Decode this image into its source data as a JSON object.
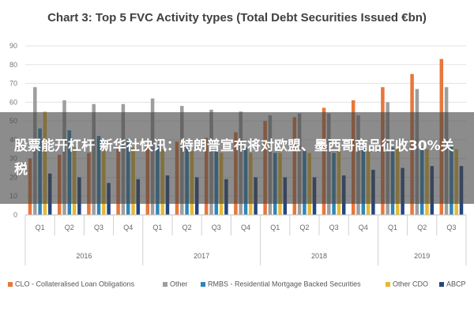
{
  "chart_data": {
    "type": "bar",
    "title": "Chart 3: Top 5 FVC Activity types (Total Debt Securities Issued €bn)",
    "categories": [
      "Q1",
      "Q2",
      "Q3",
      "Q4",
      "Q1",
      "Q2",
      "Q3",
      "Q4",
      "Q1",
      "Q2",
      "Q3",
      "Q4",
      "Q1",
      "Q2",
      "Q3"
    ],
    "groups": [
      {
        "label": "2016",
        "span": 4
      },
      {
        "label": "2017",
        "span": 4
      },
      {
        "label": "2018",
        "span": 4
      },
      {
        "label": "2019",
        "span": 3
      }
    ],
    "ylim": [
      0,
      90
    ],
    "yticks": [
      0,
      10,
      20,
      30,
      40,
      50,
      60,
      70,
      80,
      90
    ],
    "grid": true,
    "legend_position": "bottom",
    "series": [
      {
        "name": "CLO - Collateralised Loan Obligations",
        "color": "#e8773a",
        "values": [
          30,
          32,
          33,
          35,
          37,
          39,
          41,
          44,
          50,
          52,
          57,
          61,
          68,
          75,
          83
        ]
      },
      {
        "name": "Other",
        "color": "#9e9e9e",
        "values": [
          68,
          61,
          59,
          59,
          62,
          58,
          56,
          55,
          53,
          54,
          54,
          53,
          60,
          67,
          68
        ]
      },
      {
        "name": "RMBS - Residential Mortgage Backed Securities",
        "color": "#2e86b8",
        "values": [
          46,
          45,
          42,
          40,
          38,
          37,
          36,
          36,
          33,
          34,
          33,
          35,
          36,
          36,
          37
        ]
      },
      {
        "name": "Other CDO",
        "color": "#e8b830",
        "values": [
          55,
          36,
          35,
          36,
          35,
          34,
          33,
          33,
          33,
          33,
          34,
          34,
          36,
          35,
          35
        ]
      },
      {
        "name": "ABCP",
        "color": "#23467f",
        "values": [
          22,
          20,
          17,
          19,
          21,
          20,
          19,
          20,
          20,
          20,
          21,
          24,
          25,
          26,
          26
        ]
      }
    ]
  },
  "overlay": {
    "text": "股票能开杠杆 新华社快讯：特朗普宣布将对欧盟、墨西哥商品征收30%关税"
  }
}
